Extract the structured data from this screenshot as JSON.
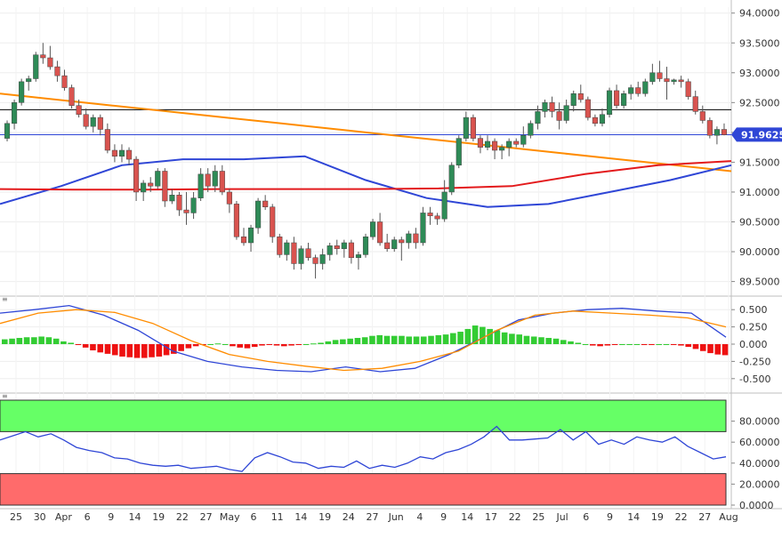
{
  "chart_data": [
    {
      "type": "candlestick",
      "name_shown": "",
      "price_axis": {
        "ticks": [
          "94.0000",
          "93.5000",
          "93.0000",
          "92.5000",
          "92.0000",
          "91.5000",
          "91.0000",
          "90.5000",
          "90.0000",
          "89.5000"
        ],
        "tick_values": [
          94.0,
          93.5,
          93.0,
          92.5,
          92.0,
          91.5,
          91.0,
          90.5,
          90.0,
          89.5
        ],
        "ylim": [
          89.3,
          94.1
        ]
      },
      "last_price_label": "91.9625",
      "last_price": 91.9625,
      "horizontal_lines": [
        92.38,
        91.96
      ],
      "candles_ohlc": [
        [
          91.9,
          92.2,
          91.85,
          92.15
        ],
        [
          92.15,
          92.55,
          92.05,
          92.5
        ],
        [
          92.5,
          92.9,
          92.45,
          92.85
        ],
        [
          92.85,
          92.95,
          92.7,
          92.9
        ],
        [
          92.9,
          93.35,
          92.85,
          93.3
        ],
        [
          93.3,
          93.5,
          93.15,
          93.25
        ],
        [
          93.25,
          93.45,
          93.05,
          93.1
        ],
        [
          93.1,
          93.2,
          92.85,
          92.95
        ],
        [
          92.95,
          93.05,
          92.7,
          92.75
        ],
        [
          92.75,
          92.8,
          92.4,
          92.45
        ],
        [
          92.45,
          92.55,
          92.25,
          92.3
        ],
        [
          92.3,
          92.4,
          92.05,
          92.1
        ],
        [
          92.1,
          92.3,
          92.0,
          92.25
        ],
        [
          92.25,
          92.3,
          91.95,
          92.05
        ],
        [
          92.05,
          92.15,
          91.65,
          91.7
        ],
        [
          91.7,
          91.8,
          91.5,
          91.6
        ],
        [
          91.6,
          91.8,
          91.5,
          91.7
        ],
        [
          91.7,
          91.75,
          91.45,
          91.55
        ],
        [
          91.55,
          91.6,
          90.85,
          91.0
        ],
        [
          91.0,
          91.2,
          90.85,
          91.15
        ],
        [
          91.15,
          91.25,
          91.0,
          91.1
        ],
        [
          91.1,
          91.4,
          91.05,
          91.35
        ],
        [
          91.35,
          91.4,
          90.75,
          90.85
        ],
        [
          90.85,
          91.05,
          90.8,
          90.95
        ],
        [
          90.95,
          91.0,
          90.6,
          90.7
        ],
        [
          90.7,
          91.0,
          90.45,
          90.65
        ],
        [
          90.65,
          91.0,
          90.55,
          90.9
        ],
        [
          90.9,
          91.4,
          90.85,
          91.3
        ],
        [
          91.3,
          91.4,
          91.0,
          91.1
        ],
        [
          91.1,
          91.45,
          91.0,
          91.35
        ],
        [
          91.35,
          91.45,
          90.95,
          91.0
        ],
        [
          91.0,
          91.05,
          90.65,
          90.8
        ],
        [
          90.8,
          90.85,
          90.2,
          90.25
        ],
        [
          90.25,
          90.4,
          90.1,
          90.15
        ],
        [
          90.15,
          90.45,
          90.0,
          90.4
        ],
        [
          90.4,
          90.9,
          90.3,
          90.85
        ],
        [
          90.85,
          90.95,
          90.7,
          90.75
        ],
        [
          90.75,
          90.8,
          90.15,
          90.25
        ],
        [
          90.25,
          90.3,
          89.9,
          89.95
        ],
        [
          89.95,
          90.2,
          89.85,
          90.15
        ],
        [
          90.15,
          90.25,
          89.7,
          89.8
        ],
        [
          89.8,
          90.1,
          89.7,
          90.05
        ],
        [
          90.05,
          90.15,
          89.85,
          89.9
        ],
        [
          89.9,
          89.95,
          89.55,
          89.8
        ],
        [
          89.8,
          90.05,
          89.7,
          89.95
        ],
        [
          89.95,
          90.15,
          89.85,
          90.1
        ],
        [
          90.1,
          90.2,
          89.95,
          90.05
        ],
        [
          90.05,
          90.2,
          89.9,
          90.15
        ],
        [
          90.15,
          90.2,
          89.8,
          89.9
        ],
        [
          89.9,
          90.0,
          89.7,
          89.95
        ],
        [
          89.95,
          90.3,
          89.9,
          90.25
        ],
        [
          90.25,
          90.55,
          90.2,
          90.5
        ],
        [
          90.5,
          90.65,
          90.1,
          90.15
        ],
        [
          90.15,
          90.3,
          90.0,
          90.05
        ],
        [
          90.05,
          90.25,
          90.0,
          90.2
        ],
        [
          90.2,
          90.25,
          89.85,
          90.15
        ],
        [
          90.15,
          90.35,
          90.05,
          90.3
        ],
        [
          90.3,
          90.4,
          90.05,
          90.15
        ],
        [
          90.15,
          90.75,
          90.1,
          90.65
        ],
        [
          90.65,
          90.75,
          90.45,
          90.6
        ],
        [
          90.6,
          90.65,
          90.45,
          90.55
        ],
        [
          90.55,
          91.2,
          90.5,
          91.0
        ],
        [
          91.0,
          91.5,
          90.95,
          91.45
        ],
        [
          91.45,
          91.95,
          91.4,
          91.9
        ],
        [
          91.9,
          92.35,
          91.85,
          92.25
        ],
        [
          92.25,
          92.3,
          91.85,
          91.9
        ],
        [
          91.9,
          91.95,
          91.65,
          91.75
        ],
        [
          91.75,
          91.95,
          91.7,
          91.85
        ],
        [
          91.85,
          91.9,
          91.55,
          91.7
        ],
        [
          91.7,
          91.8,
          91.55,
          91.75
        ],
        [
          91.75,
          91.9,
          91.6,
          91.85
        ],
        [
          91.85,
          91.9,
          91.75,
          91.8
        ],
        [
          91.8,
          92.1,
          91.75,
          91.95
        ],
        [
          91.95,
          92.2,
          91.9,
          92.15
        ],
        [
          92.15,
          92.45,
          92.05,
          92.35
        ],
        [
          92.35,
          92.55,
          92.25,
          92.5
        ],
        [
          92.5,
          92.6,
          92.25,
          92.35
        ],
        [
          92.35,
          92.5,
          92.05,
          92.2
        ],
        [
          92.2,
          92.55,
          92.15,
          92.45
        ],
        [
          92.45,
          92.7,
          92.35,
          92.65
        ],
        [
          92.65,
          92.8,
          92.5,
          92.55
        ],
        [
          92.55,
          92.6,
          92.2,
          92.25
        ],
        [
          92.25,
          92.3,
          92.1,
          92.15
        ],
        [
          92.15,
          92.4,
          92.1,
          92.3
        ],
        [
          92.3,
          92.75,
          92.25,
          92.7
        ],
        [
          92.7,
          92.8,
          92.4,
          92.45
        ],
        [
          92.45,
          92.7,
          92.4,
          92.65
        ],
        [
          92.65,
          92.8,
          92.55,
          92.75
        ],
        [
          92.75,
          92.85,
          92.6,
          92.65
        ],
        [
          92.65,
          92.9,
          92.6,
          92.85
        ],
        [
          92.85,
          93.15,
          92.8,
          93.0
        ],
        [
          93.0,
          93.2,
          92.85,
          92.9
        ],
        [
          92.9,
          93.1,
          92.55,
          92.85
        ],
        [
          92.85,
          92.9,
          92.8,
          92.88
        ],
        [
          92.88,
          92.95,
          92.75,
          92.85
        ],
        [
          92.85,
          92.9,
          92.55,
          92.6
        ],
        [
          92.6,
          92.7,
          92.3,
          92.35
        ],
        [
          92.35,
          92.45,
          92.15,
          92.2
        ],
        [
          92.2,
          92.25,
          91.9,
          91.95
        ],
        [
          91.95,
          92.1,
          91.8,
          92.05
        ],
        [
          92.05,
          92.15,
          91.95,
          91.96
        ]
      ],
      "moving_averages": [
        {
          "color": "#ff8c00",
          "values": [
            92.65,
            92.55,
            92.45,
            92.35,
            92.25,
            92.15,
            92.05,
            91.95,
            91.85,
            91.75,
            91.65,
            91.55,
            91.45,
            91.35
          ]
        },
        {
          "color": "#2f46d6",
          "values": [
            90.8,
            91.1,
            91.45,
            91.55,
            91.55,
            91.6,
            91.2,
            90.9,
            90.75,
            90.8,
            91.0,
            91.2,
            91.45
          ]
        },
        {
          "color": "#e31a1c",
          "values": [
            91.05,
            91.04,
            91.04,
            91.05,
            91.05,
            91.05,
            91.06,
            91.1,
            91.3,
            91.45,
            91.52
          ]
        }
      ],
      "x_ticks": [
        "25",
        "30",
        "Apr",
        "6",
        "9",
        "14",
        "19",
        "22",
        "27",
        "May",
        "6",
        "11",
        "14",
        "19",
        "24",
        "27",
        "Jun",
        "4",
        "9",
        "14",
        "17",
        "22",
        "25",
        "Jul",
        "6",
        "9",
        "14",
        "19",
        "22",
        "27",
        "Aug"
      ]
    },
    {
      "type": "macd",
      "axis_ticks": [
        "0.500",
        "0.250",
        "0.000",
        "-0.250",
        "-0.500"
      ],
      "tick_values": [
        0.5,
        0.25,
        0.0,
        -0.25,
        -0.5
      ],
      "ylim": [
        -0.58,
        0.58
      ],
      "histogram": [
        0.07,
        0.08,
        0.09,
        0.1,
        0.1,
        0.11,
        0.1,
        0.08,
        0.04,
        0.02,
        -0.01,
        -0.05,
        -0.09,
        -0.12,
        -0.14,
        -0.16,
        -0.18,
        -0.19,
        -0.2,
        -0.2,
        -0.19,
        -0.18,
        -0.16,
        -0.14,
        -0.1,
        -0.06,
        -0.03,
        -0.01,
        0.0,
        0.01,
        0.0,
        -0.03,
        -0.05,
        -0.06,
        -0.04,
        -0.02,
        -0.01,
        -0.02,
        -0.03,
        -0.02,
        -0.01,
        0.0,
        0.01,
        0.02,
        0.04,
        0.06,
        0.07,
        0.08,
        0.09,
        0.1,
        0.12,
        0.13,
        0.12,
        0.12,
        0.12,
        0.11,
        0.11,
        0.11,
        0.12,
        0.13,
        0.14,
        0.16,
        0.18,
        0.22,
        0.27,
        0.25,
        0.22,
        0.2,
        0.17,
        0.15,
        0.14,
        0.12,
        0.11,
        0.1,
        0.09,
        0.08,
        0.06,
        0.04,
        0.02,
        0.0,
        -0.02,
        -0.03,
        -0.02,
        -0.01,
        0.0,
        0.0,
        0.0,
        -0.01,
        -0.01,
        0.0,
        0.0,
        -0.01,
        -0.02,
        -0.04,
        -0.07,
        -0.1,
        -0.13,
        -0.15,
        -0.16
      ],
      "macd_line": [
        0.45,
        0.5,
        0.56,
        0.42,
        0.2,
        -0.1,
        -0.25,
        -0.33,
        -0.38,
        -0.4,
        -0.33,
        -0.4,
        -0.35,
        -0.15,
        0.1,
        0.35,
        0.45,
        0.5,
        0.52,
        0.48,
        0.45,
        0.1
      ],
      "signal_line": [
        0.3,
        0.45,
        0.5,
        0.46,
        0.3,
        0.05,
        -0.15,
        -0.25,
        -0.32,
        -0.38,
        -0.35,
        -0.25,
        -0.1,
        0.2,
        0.42,
        0.48,
        0.45,
        0.42,
        0.38,
        0.25
      ]
    },
    {
      "type": "line",
      "axis_ticks": [
        "80.0000",
        "60.0000",
        "40.0000",
        "20.0000",
        "0.0000"
      ],
      "tick_values": [
        80,
        60,
        40,
        20,
        0
      ],
      "ylim": [
        0,
        100
      ],
      "overbought_zone": [
        70,
        100
      ],
      "oversold_zone": [
        0,
        30
      ],
      "zone_colors": {
        "overbought": "#66ff66",
        "oversold": "#ff6b6b"
      },
      "values": [
        62,
        66,
        70,
        65,
        68,
        62,
        55,
        52,
        50,
        45,
        44,
        40,
        38,
        37,
        38,
        35,
        36,
        37,
        34,
        32,
        45,
        50,
        46,
        41,
        40,
        35,
        37,
        36,
        42,
        35,
        38,
        36,
        40,
        46,
        44,
        50,
        53,
        58,
        65,
        75,
        62,
        62,
        63,
        64,
        72,
        62,
        70,
        58,
        62,
        58,
        65,
        62,
        60,
        65,
        56,
        50,
        44,
        46
      ]
    }
  ]
}
